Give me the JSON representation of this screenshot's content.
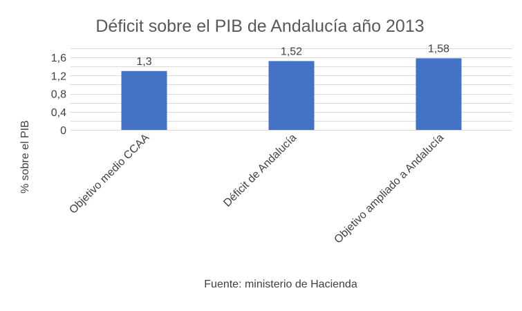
{
  "chart_data": {
    "type": "bar",
    "title": "Déficit sobre el PIB de Andalucía año 2013",
    "categories": [
      "Objetivo medio CCAA",
      "Déficit de Andalucía",
      "Objetivo ampliado a Andalucía"
    ],
    "values": [
      1.3,
      1.52,
      1.58
    ],
    "value_labels": [
      "1,3",
      "1,52",
      "1,58"
    ],
    "ylabel": "% sobre el PIB",
    "xlabel": "",
    "ylim": [
      0,
      1.8
    ],
    "yticks": [
      0,
      0.4,
      0.8,
      1.2,
      1.6
    ],
    "ytick_labels": [
      "0",
      "0,4",
      "0,8",
      "1,2",
      "1,6"
    ],
    "grid": true,
    "legend": "none",
    "source": "Fuente: ministerio de Hacienda",
    "colors": {
      "bar": "#4472c4",
      "grid": "#d9d9d9",
      "text": "#404040",
      "title": "#595959"
    }
  }
}
